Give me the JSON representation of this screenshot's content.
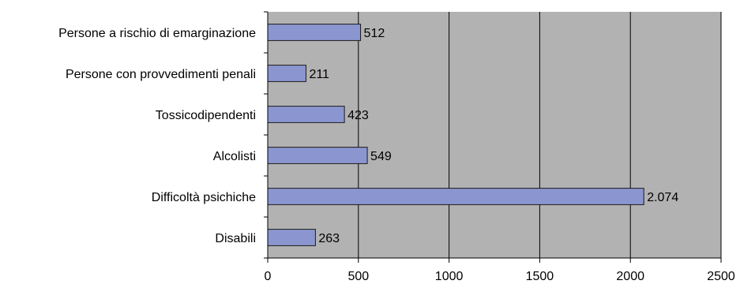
{
  "chart_data": {
    "type": "bar",
    "orientation": "horizontal",
    "categories": [
      "Persone a rischio di emarginazione",
      "Persone con provvedimenti penali",
      "Tossicodipendenti",
      "Alcolisti",
      "Difficoltà psichiche",
      "Disabili"
    ],
    "values": [
      512,
      211,
      423,
      549,
      2074,
      263
    ],
    "data_labels": [
      "512",
      "211",
      "423",
      "549",
      "2.074",
      "263"
    ],
    "xticks": [
      0,
      500,
      1000,
      1500,
      2000,
      2500
    ],
    "xtick_labels": [
      "0",
      "500",
      "1000",
      "1500",
      "2000",
      "2500"
    ],
    "xlim": [
      0,
      2500
    ],
    "title": "",
    "xlabel": "",
    "ylabel": "",
    "grid": "vertical",
    "legend": "none",
    "colors": {
      "plot_background": "#b2b2b2",
      "bar_fill": "#8b96d0",
      "bar_stroke": "#1a1a1a",
      "grid": "#000000",
      "axis": "#000000"
    }
  }
}
